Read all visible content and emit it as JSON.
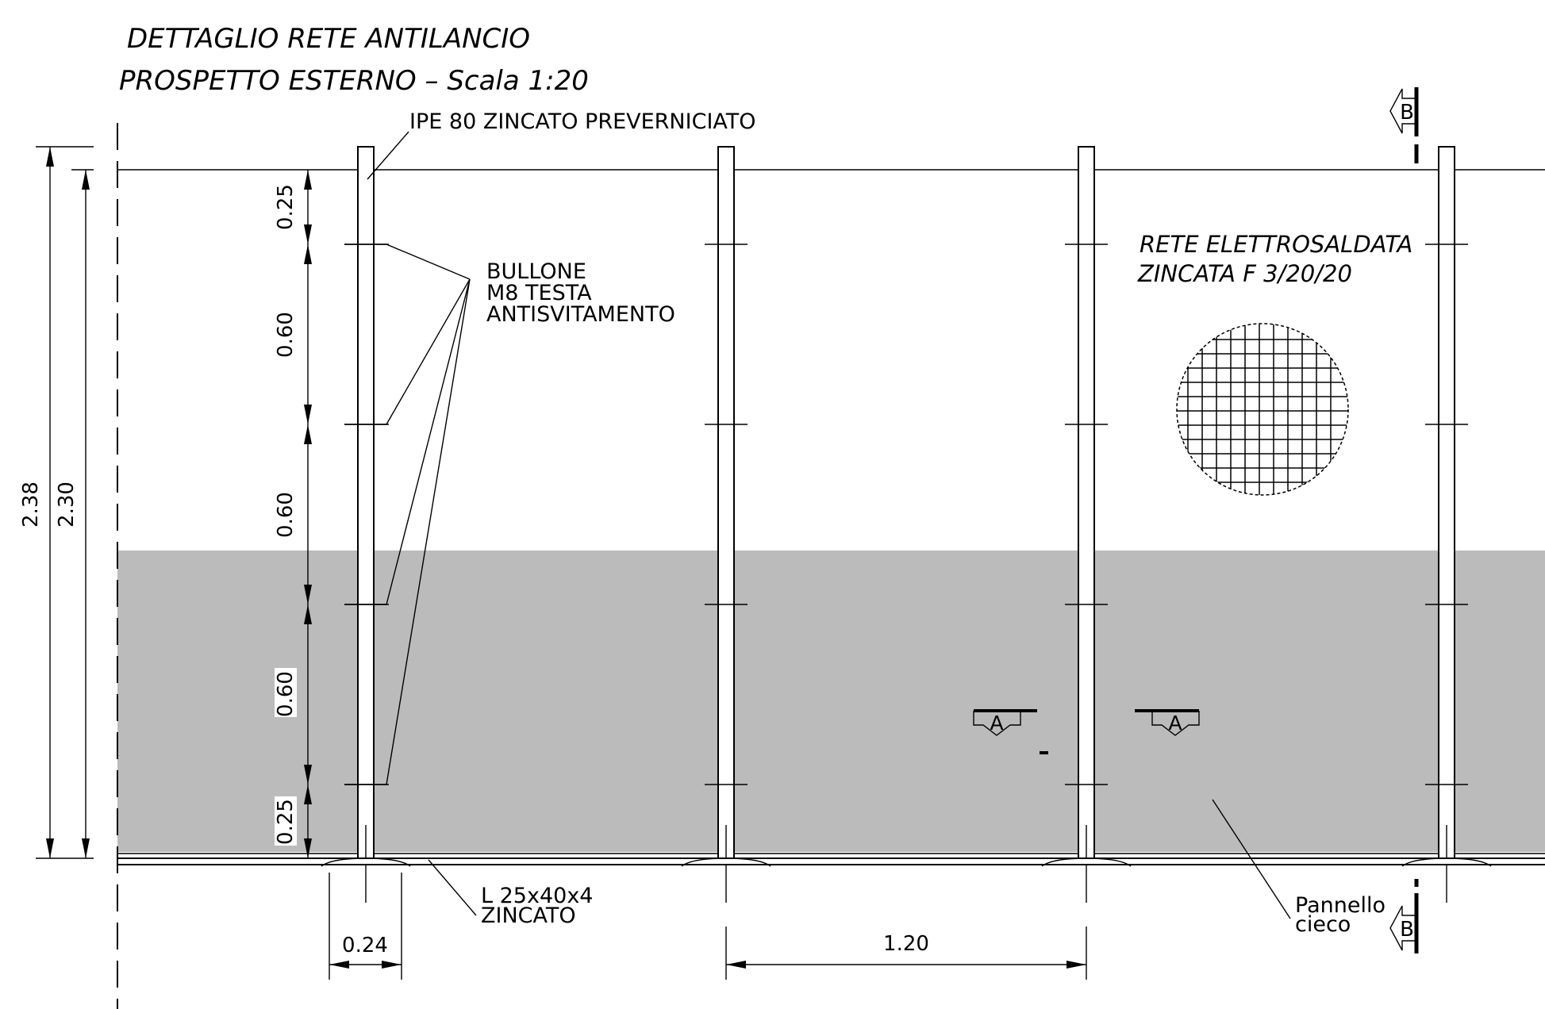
{
  "title": {
    "line1": "DETTAGLIO RETE ANTILANCIO",
    "line2": "PROSPETTO ESTERNO – Scala 1:20"
  },
  "labels": {
    "post_profile": "IPE 80 ZINCATO PREVERNICIATO",
    "bolt": [
      "BULLONE",
      "M8 TESTA",
      "ANTISVITAMENTO"
    ],
    "mesh": [
      "RETE ELETTROSALDATA",
      "ZINCATA F 3/20/20"
    ],
    "angle": [
      "L 25x40x4",
      "ZINCATO"
    ],
    "panel": [
      "Pannello",
      "cieco"
    ]
  },
  "dimensions": {
    "total_outer": "2.38",
    "total_inner": "2.30",
    "segments": [
      "0.25",
      "0.60",
      "0.60",
      "0.60",
      "0.25"
    ],
    "base_width": "0.24",
    "post_spacing": "1.20"
  },
  "section_marks": {
    "a": "A",
    "b": "B"
  },
  "colors": {
    "panel_fill": "#bbbbbb",
    "line": "#000000",
    "background": "#ffffff"
  }
}
